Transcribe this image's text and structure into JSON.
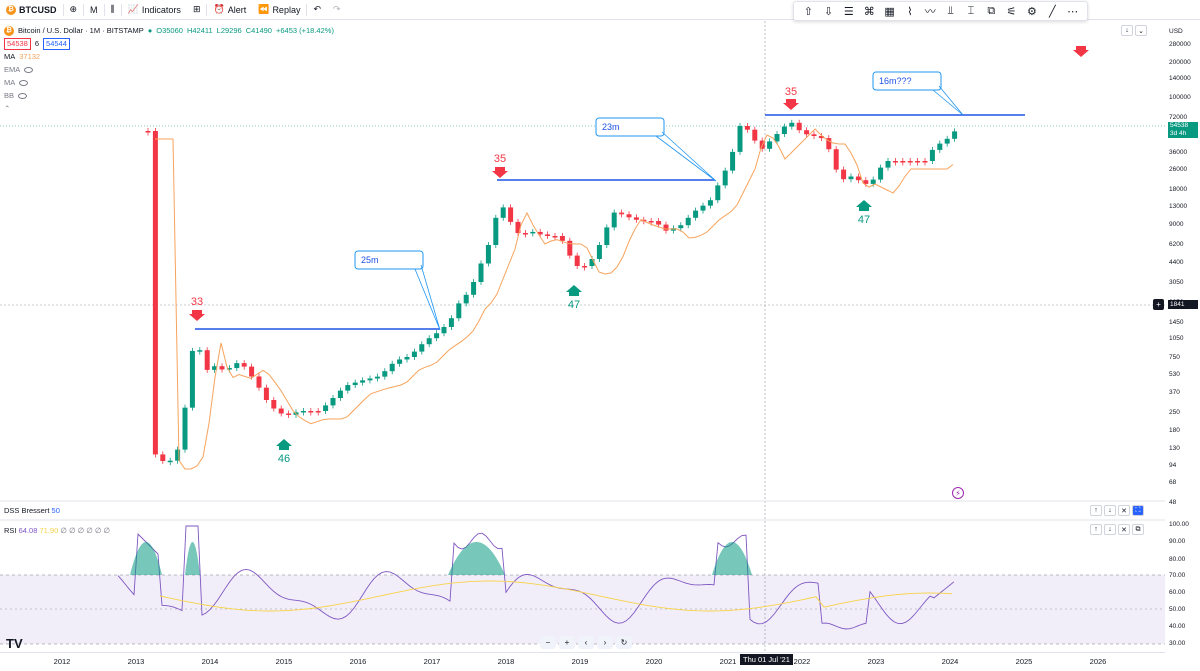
{
  "toolbar": {
    "symbol": "BTCUSD",
    "interval": "M",
    "indicators_label": "Indicators",
    "alert_label": "Alert",
    "replay_label": "Replay"
  },
  "legend": {
    "title": "Bitcoin / U.S. Dollar · 1M · BITSTAMP",
    "open": "O35060",
    "high": "H42411",
    "low": "L29296",
    "close": "C41490",
    "change": "+6453 (+18.42%)",
    "sell_price": "54538",
    "spread": "6",
    "buy_price": "54544",
    "ma_label": "MA",
    "ma_value": "37132",
    "ema_label": "EMA",
    "ma2_label": "MA",
    "bb_label": "BB"
  },
  "price_axis": {
    "currency": "USD",
    "ticks": [
      "280000",
      "200000",
      "140000",
      "100000",
      "72000",
      "52000",
      "36000",
      "26000",
      "18000",
      "13000",
      "9000",
      "6200",
      "4400",
      "3050",
      "2050",
      "1450",
      "1050",
      "750",
      "530",
      "370",
      "250",
      "180",
      "130",
      "94",
      "68",
      "48"
    ],
    "last_price": "54538",
    "countdown": "3d 4h",
    "crosshair_price": "1841"
  },
  "time_axis": {
    "ticks": [
      "2012",
      "2013",
      "2014",
      "2015",
      "2016",
      "2017",
      "2018",
      "2019",
      "2020",
      "2021",
      "2022",
      "2023",
      "2024",
      "2025",
      "2026"
    ],
    "crosshair_date": "Thu 01 Jul '21"
  },
  "annotations": {
    "top_33": "33",
    "top_35a": "35",
    "top_35b": "35",
    "bottom_46": "46",
    "bottom_47a": "47",
    "bottom_47b": "47",
    "callout_25m": "25m",
    "callout_23m": "23m",
    "callout_16m": "16m???"
  },
  "indicators": {
    "dss_label": "DSS Bressert",
    "dss_value": "50",
    "rsi_label": "RSI",
    "rsi_value": "64.08",
    "rsi_ma_value": "71.90",
    "rsi_extra": "∅ ∅ ∅ ∅ ∅ ∅",
    "rsi_ticks": [
      "100.00",
      "90.00",
      "80.00",
      "70.00",
      "60.00",
      "50.00",
      "40.00",
      "30.00"
    ]
  },
  "colors": {
    "up": "#089981",
    "down": "#f23645",
    "ma": "#f7a35c",
    "hline": "#1e53e5",
    "rsi": "#7e57c2",
    "rsi_ma": "#f7d34a"
  },
  "chart_data": {
    "type": "candlestick",
    "title": "Bitcoin / U.S. Dollar · 1M · BITSTAMP",
    "scale": "log",
    "horizontal_levels": [
      1160,
      19600,
      69000
    ],
    "annotated_tops": [
      {
        "year": "2013-11",
        "label": "33"
      },
      {
        "year": "2017-12",
        "label": "35"
      },
      {
        "year": "2021-11",
        "label": "35"
      }
    ],
    "annotated_bottoms": [
      {
        "year": "2015-01",
        "label": "46"
      },
      {
        "year": "2018-12",
        "label": "47"
      },
      {
        "year": "2022-11",
        "label": "47"
      }
    ]
  }
}
